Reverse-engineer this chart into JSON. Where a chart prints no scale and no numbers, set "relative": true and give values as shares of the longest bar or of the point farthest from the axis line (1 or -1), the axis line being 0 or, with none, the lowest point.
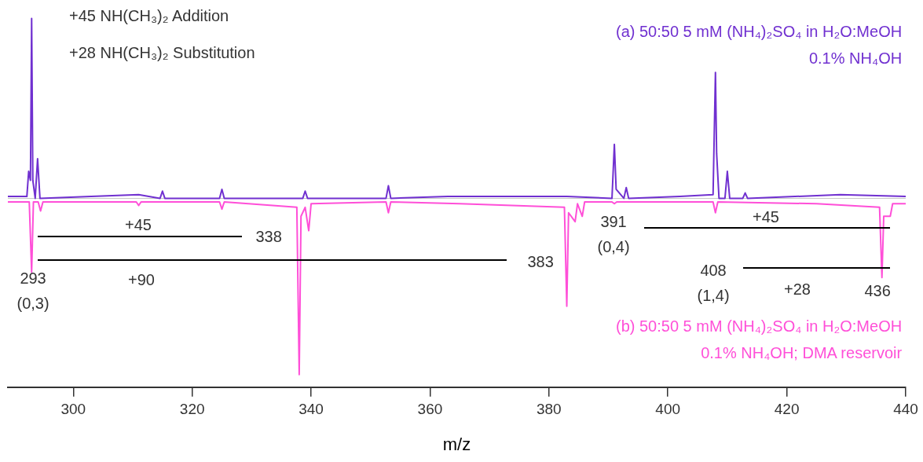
{
  "chart_data": {
    "type": "line",
    "relative": true,
    "xlabel": "m/z",
    "xlim": [
      289,
      440
    ],
    "xticks": [
      300,
      320,
      340,
      360,
      380,
      400,
      420,
      440
    ],
    "grid": false,
    "legend": false,
    "series": [
      {
        "name": "(a) 50:50 5 mM (NH₄)₂SO₄ in H₂O:MeOH\n0.1% NH₄OH",
        "color": "#7030d0",
        "x": [
          289,
          292.2,
          292.5,
          292.8,
          293,
          293.2,
          293.6,
          294,
          294.4,
          303,
          311,
          314.6,
          315,
          315.4,
          324.6,
          325,
          325.4,
          338.6,
          339,
          339.4,
          352.6,
          353,
          353.4,
          363,
          372,
          383,
          390.6,
          391,
          391.3,
          392.6,
          393,
          393.4,
          402,
          407.6,
          408,
          408.2,
          408.6,
          409.6,
          410,
          410.4,
          412.6,
          413,
          413.4,
          429,
          440
        ],
        "values": [
          0.01,
          0.01,
          0.15,
          0.1,
          1,
          0.1,
          0,
          0.22,
          0,
          0.01,
          0.02,
          0,
          0.04,
          0,
          0,
          0.05,
          0,
          0,
          0.04,
          0,
          0,
          0.07,
          0,
          0.01,
          0.01,
          0.01,
          0,
          0.3,
          0.05,
          0,
          0.06,
          0,
          0.01,
          0.02,
          0.7,
          0.25,
          0,
          0,
          0.15,
          0,
          0,
          0.03,
          0,
          0.02,
          0.01
        ]
      },
      {
        "name": "(b) 50:50 5 mM (NH₄)₂SO₄ in H₂O:MeOH\n0.1% NH₄OH; DMA reservoir",
        "color": "#ff4fd8",
        "x": [
          289,
          292.6,
          293,
          293.3,
          294.1,
          294.5,
          294.9,
          310.6,
          311,
          311.4,
          324.6,
          325,
          325.4,
          337.6,
          338,
          338.3,
          339,
          339.6,
          340,
          352.6,
          353,
          353.4,
          365,
          382.6,
          383,
          383.3,
          384.4,
          384.8,
          385.6,
          386,
          390.6,
          391,
          391.4,
          407.6,
          408,
          408.4,
          425,
          435.6,
          436,
          436.3,
          437.4,
          437.8,
          440
        ],
        "values": [
          -0.02,
          -0.02,
          -0.41,
          -0.02,
          -0.02,
          -0.07,
          -0.02,
          -0.02,
          -0.04,
          -0.02,
          -0.02,
          -0.06,
          -0.02,
          -0.05,
          -0.98,
          -0.1,
          -0.05,
          -0.18,
          -0.03,
          -0.02,
          -0.08,
          -0.02,
          -0.03,
          -0.05,
          -0.6,
          -0.08,
          -0.13,
          -0.03,
          -0.1,
          -0.02,
          -0.02,
          -0.03,
          -0.02,
          -0.02,
          -0.08,
          -0.02,
          -0.03,
          -0.05,
          -0.44,
          -0.1,
          -0.1,
          -0.03,
          -0.03
        ]
      }
    ],
    "annotations": [
      "+45 NH(CH₃)₂ Addition",
      "+28 NH(CH₃)₂ Substitution",
      "+45",
      "338",
      "+90",
      "293\n(0,3)",
      "383",
      "391\n(0,4)",
      "+45",
      "408\n(1,4)",
      "+28",
      "436"
    ]
  }
}
